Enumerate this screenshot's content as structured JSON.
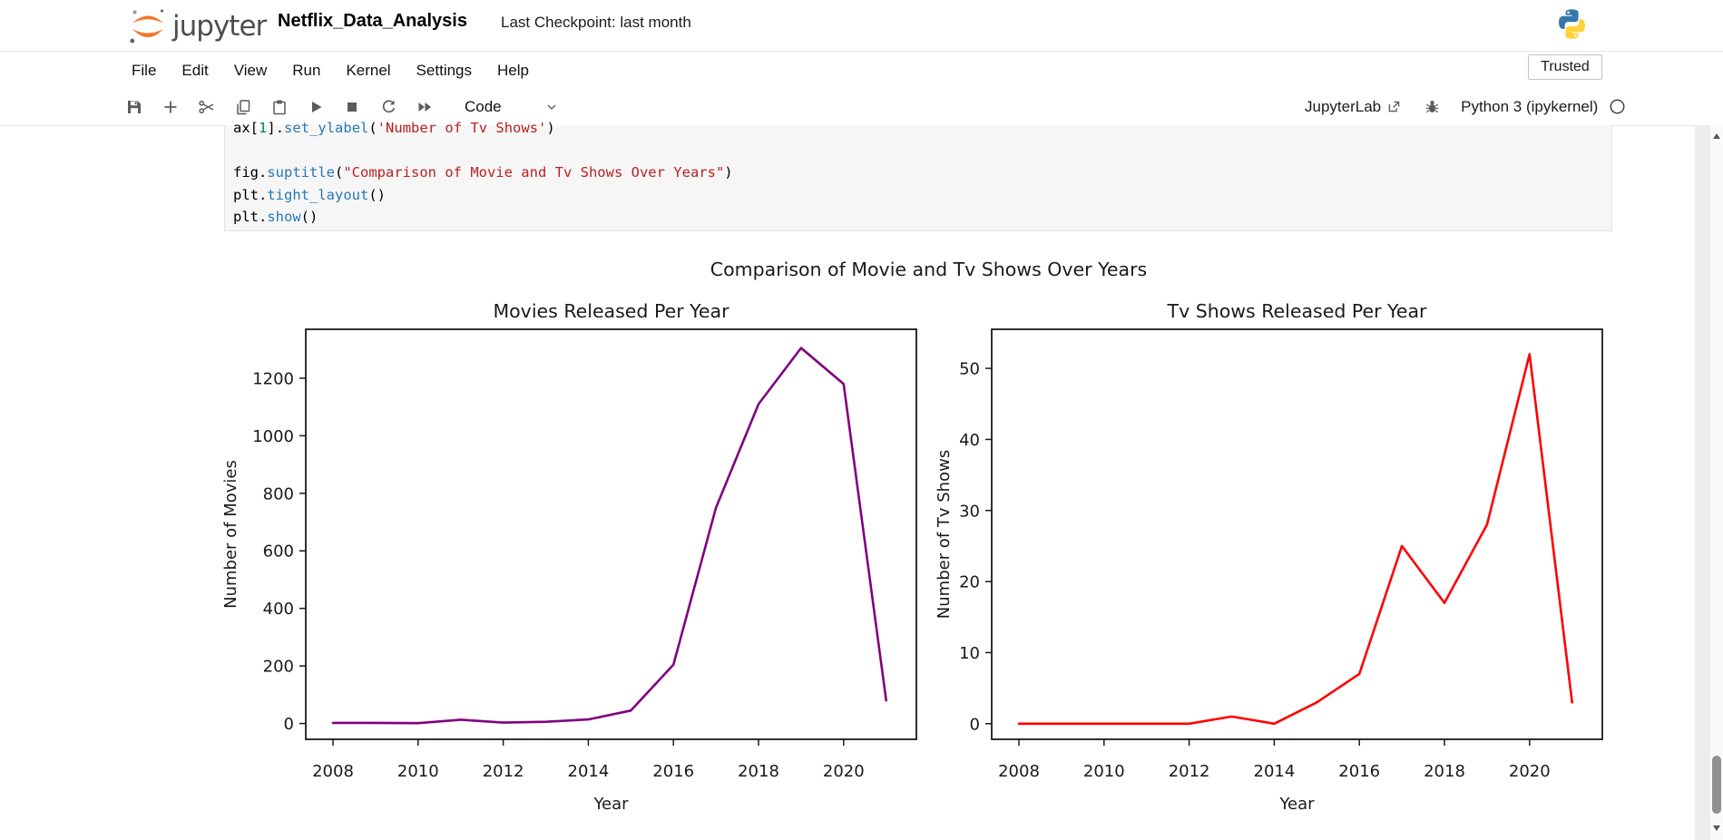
{
  "header": {
    "logo_text": "jupyter",
    "notebook_title": "Netflix_Data_Analysis",
    "checkpoint": "Last Checkpoint: last month"
  },
  "menu": {
    "items": [
      "File",
      "Edit",
      "View",
      "Run",
      "Kernel",
      "Settings",
      "Help"
    ],
    "trusted_label": "Trusted"
  },
  "toolbar": {
    "icons": [
      "save",
      "insert-cell-below",
      "cut-cells",
      "copy-cells",
      "paste-cells",
      "run-cell",
      "interrupt-kernel",
      "restart-kernel",
      "restart-and-run-all"
    ],
    "cell_type": "Code",
    "jupyterlab_label": "JupyterLab",
    "kernel_name": "Python 3 (ipykernel)"
  },
  "code_cell": {
    "lines": [
      [
        {
          "text": "ax",
          "type": "name"
        },
        {
          "text": "[",
          "type": "punct"
        },
        {
          "text": "1",
          "type": "num"
        },
        {
          "text": "]",
          "type": "punct"
        },
        {
          "text": ".",
          "type": "punct"
        },
        {
          "text": "set_ylabel",
          "type": "func"
        },
        {
          "text": "(",
          "type": "punct"
        },
        {
          "text": "'Number of Tv Shows'",
          "type": "str"
        },
        {
          "text": ")",
          "type": "punct"
        }
      ],
      [],
      [
        {
          "text": "fig",
          "type": "name"
        },
        {
          "text": ".",
          "type": "punct"
        },
        {
          "text": "suptitle",
          "type": "func"
        },
        {
          "text": "(",
          "type": "punct"
        },
        {
          "text": "\"Comparison of Movie and Tv Shows Over Years\"",
          "type": "str"
        },
        {
          "text": ")",
          "type": "punct"
        }
      ],
      [
        {
          "text": "plt",
          "type": "name"
        },
        {
          "text": ".",
          "type": "punct"
        },
        {
          "text": "tight_layout",
          "type": "func"
        },
        {
          "text": "(",
          "type": "punct"
        },
        {
          "text": ")",
          "type": "punct"
        }
      ],
      [
        {
          "text": "plt",
          "type": "name"
        },
        {
          "text": ".",
          "type": "punct"
        },
        {
          "text": "show",
          "type": "func"
        },
        {
          "text": "(",
          "type": "punct"
        },
        {
          "text": ")",
          "type": "punct"
        }
      ]
    ]
  },
  "figure": {
    "suptitle": "Comparison of Movie and Tv Shows Over Years"
  },
  "chart_data": [
    {
      "type": "line",
      "title": "Movies Released Per Year",
      "xlabel": "Year",
      "ylabel": "Number of Movies",
      "x": [
        2008,
        2009,
        2010,
        2011,
        2012,
        2013,
        2014,
        2015,
        2016,
        2017,
        2018,
        2019,
        2020,
        2021
      ],
      "values": [
        2,
        2,
        1,
        13,
        3,
        6,
        14,
        45,
        204,
        750,
        1110,
        1305,
        1180,
        80
      ],
      "line_color": "#800080",
      "xlim": [
        2007.36,
        2021.71
      ],
      "ylim": [
        -55,
        1370
      ],
      "xticks": [
        2008,
        2010,
        2012,
        2014,
        2016,
        2018,
        2020
      ],
      "yticks": [
        0,
        200,
        400,
        600,
        800,
        1000,
        1200
      ],
      "grid": false,
      "legend": null
    },
    {
      "type": "line",
      "title": "Tv Shows Released Per Year",
      "xlabel": "Year",
      "ylabel": "Number of Tv Shows",
      "x": [
        2008,
        2009,
        2010,
        2011,
        2012,
        2013,
        2014,
        2015,
        2016,
        2017,
        2018,
        2019,
        2020,
        2021
      ],
      "values": [
        0,
        0,
        0,
        0,
        0,
        1,
        0,
        3,
        7,
        25,
        17,
        28,
        52,
        3
      ],
      "line_color": "#ff0000",
      "xlim": [
        2007.36,
        2021.71
      ],
      "ylim": [
        -2.2,
        55.5
      ],
      "xticks": [
        2008,
        2010,
        2012,
        2014,
        2016,
        2018,
        2020
      ],
      "yticks": [
        0,
        10,
        20,
        30,
        40,
        50
      ],
      "grid": false,
      "legend": null
    }
  ],
  "colors": {
    "accent_orange": "#f37626",
    "python_blue": "#3776ab",
    "python_yellow": "#ffd43b",
    "axis_text": "#1a1a1a",
    "cell_bg": "#f6f6f6"
  }
}
